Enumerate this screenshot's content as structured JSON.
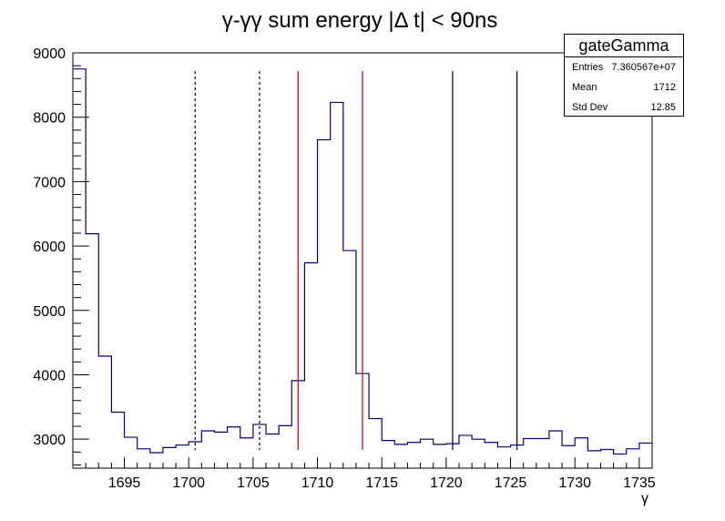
{
  "chart_data": {
    "type": "histogram",
    "title": "γ-γγ sum energy |Δ t| < 90ns",
    "xlabel": "γ",
    "ylabel": "",
    "xlim": [
      1691,
      1736
    ],
    "ylim": [
      2550,
      9000
    ],
    "xticks": [
      1695,
      1700,
      1705,
      1710,
      1715,
      1720,
      1725,
      1730,
      1735
    ],
    "yticks": [
      3000,
      4000,
      5000,
      6000,
      7000,
      8000,
      9000
    ],
    "bin_edges": [
      1691,
      1692,
      1693,
      1694,
      1695,
      1696,
      1697,
      1698,
      1699,
      1700,
      1701,
      1702,
      1703,
      1704,
      1705,
      1706,
      1707,
      1708,
      1709,
      1710,
      1711,
      1712,
      1713,
      1714,
      1715,
      1716,
      1717,
      1718,
      1719,
      1720,
      1721,
      1722,
      1723,
      1724,
      1725,
      1726,
      1727,
      1728,
      1729,
      1730,
      1731,
      1732,
      1733,
      1734,
      1735,
      1736
    ],
    "values": [
      8750,
      6190,
      4290,
      3420,
      3030,
      2850,
      2790,
      2870,
      2910,
      2960,
      3130,
      3110,
      3190,
      3020,
      3230,
      3080,
      3210,
      3910,
      5740,
      7650,
      8230,
      5930,
      4020,
      3320,
      2980,
      2920,
      2950,
      3000,
      2920,
      2930,
      3060,
      3000,
      2950,
      2880,
      2910,
      3010,
      3010,
      3130,
      2900,
      3020,
      2820,
      2840,
      2770,
      2850,
      2940
    ],
    "vertical_lines": [
      {
        "x": 1700.5,
        "color": "#000000",
        "style": "dashed"
      },
      {
        "x": 1705.5,
        "color": "#000000",
        "style": "dashed"
      },
      {
        "x": 1708.5,
        "color": "#cc0000",
        "style": "solid"
      },
      {
        "x": 1713.5,
        "color": "#cc0000",
        "style": "solid"
      },
      {
        "x": 1720.5,
        "color": "#000000",
        "style": "solid"
      },
      {
        "x": 1725.5,
        "color": "#000000",
        "style": "solid"
      }
    ],
    "line_color": "#000080"
  },
  "stats": {
    "title": "gateGamma",
    "entries_label": "Entries",
    "entries_value": "7.360567e+07",
    "mean_label": "Mean",
    "mean_value": "1712",
    "stddev_label": "Std Dev",
    "stddev_value": "12.85"
  }
}
